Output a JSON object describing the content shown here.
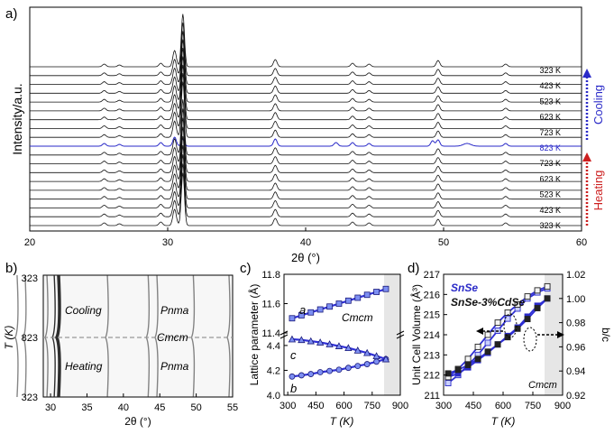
{
  "panels": {
    "a": "a)",
    "b": "b)",
    "c": "c)",
    "d": "d)"
  },
  "colors": {
    "black": "#111111",
    "blue": "#2a2ac8",
    "red": "#cc1f1f",
    "shade": "#e6e6e6",
    "lineBlue": "#2f2fd6",
    "squareFill": "#7d8ff2"
  },
  "chart_data": [
    {
      "id": "a",
      "type": "line",
      "title": "",
      "xlabel": "2θ (°)",
      "ylabel": "Intensity/a.u.",
      "xlim": [
        20,
        60
      ],
      "xticks": [
        20,
        30,
        40,
        50,
        60
      ],
      "peaks": [
        25.4,
        26.5,
        29.5,
        30.5,
        31.1,
        37.8,
        43.4,
        44.6,
        49.6,
        54.5
      ],
      "temperature_labels_top_to_bottom": [
        "323 K",
        "423 K",
        "523 K",
        "623 K",
        "723 K",
        "823 K",
        "723 K",
        "623 K",
        "523 K",
        "423 K",
        "323 K"
      ],
      "highlight_label": "823 K",
      "annotations": {
        "cooling": "Cooling",
        "heating": "Heating"
      }
    },
    {
      "id": "b",
      "type": "heatmap",
      "xlabel": "2θ (°)",
      "ylabel": "T (K)",
      "xlim": [
        29,
        55
      ],
      "xticks": [
        30,
        35,
        40,
        45,
        50,
        55
      ],
      "yticks": [
        "323",
        "823",
        "323"
      ],
      "annotations": {
        "cooling": "Cooling",
        "heating": "Heating",
        "pnma_top": "Pnma",
        "cmcm": "Cmcm",
        "pnma_bottom": "Pnma"
      }
    },
    {
      "id": "c",
      "type": "line",
      "xlabel": "T (K)",
      "ylabel": "Lattice parameter (Å)",
      "xlim": [
        280,
        900
      ],
      "xticks": [
        300,
        450,
        600,
        750,
        900
      ],
      "upper_ylim": [
        11.4,
        11.8
      ],
      "upper_yticks": [
        11.4,
        11.6,
        11.8
      ],
      "lower_ylim": [
        4.0,
        4.45
      ],
      "lower_yticks": [
        4.0,
        4.2,
        4.4
      ],
      "phase_label": "Cmcm",
      "shaded_from": 790,
      "series": [
        {
          "name": "a",
          "axis": "upper",
          "marker": "square",
          "x": [
            323,
            373,
            423,
            473,
            523,
            573,
            623,
            673,
            723,
            773,
            823
          ],
          "values": [
            11.5,
            11.52,
            11.54,
            11.56,
            11.58,
            11.6,
            11.62,
            11.64,
            11.66,
            11.68,
            11.7
          ]
        },
        {
          "name": "b",
          "axis": "lower",
          "marker": "circle",
          "x": [
            323,
            373,
            423,
            473,
            523,
            573,
            623,
            673,
            723,
            773,
            823
          ],
          "values": [
            4.15,
            4.16,
            4.17,
            4.185,
            4.195,
            4.205,
            4.22,
            4.235,
            4.25,
            4.27,
            4.29
          ]
        },
        {
          "name": "c",
          "axis": "lower",
          "marker": "triangle",
          "x": [
            323,
            373,
            423,
            473,
            523,
            573,
            623,
            673,
            723,
            773,
            823
          ],
          "values": [
            4.45,
            4.445,
            4.435,
            4.425,
            4.41,
            4.395,
            4.38,
            4.36,
            4.34,
            4.315,
            4.29
          ]
        }
      ]
    },
    {
      "id": "d",
      "type": "line",
      "xlabel": "T (K)",
      "ylabel_left": "Unit Cell Volume (Å³)",
      "ylabel_right": "b/c",
      "xlim": [
        300,
        900
      ],
      "xticks": [
        300,
        450,
        600,
        750,
        900
      ],
      "ylim_left": [
        211,
        217
      ],
      "yticks_left": [
        211,
        212,
        213,
        214,
        215,
        216,
        217
      ],
      "ylim_right": [
        0.92,
        1.02
      ],
      "yticks_right": [
        "0.92",
        "0.94",
        "0.96",
        "0.98",
        "1.00",
        "1.02"
      ],
      "phase_label": "Cmcm",
      "shaded_from": 790,
      "legend": {
        "snse": "SnSe",
        "cdse": "SnSe-3%CdSe"
      },
      "series": [
        {
          "name": "SnSe volume",
          "axis": "left",
          "marker": "open-square",
          "x": [
            323,
            373,
            423,
            473,
            523,
            573,
            623,
            673,
            723,
            773,
            823
          ],
          "values": [
            211.6,
            212.0,
            212.5,
            213.0,
            213.6,
            214.2,
            214.8,
            215.3,
            215.8,
            216.1,
            216.3
          ]
        },
        {
          "name": "SnSe b/c",
          "axis": "right",
          "marker": "filled-square",
          "x": [
            323,
            373,
            423,
            473,
            523,
            573,
            623,
            673,
            723,
            773,
            823
          ],
          "values": [
            0.935,
            0.938,
            0.943,
            0.949,
            0.955,
            0.962,
            0.969,
            0.976,
            0.985,
            0.994,
            1.0
          ]
        },
        {
          "name": "SnSe-3%CdSe volume",
          "axis": "left",
          "marker": "open-square",
          "x": [
            323,
            373,
            423,
            473,
            523,
            573,
            623,
            673,
            723,
            773,
            823
          ],
          "values": [
            211.9,
            212.3,
            212.8,
            213.4,
            214.0,
            214.6,
            215.1,
            215.5,
            215.9,
            216.2,
            216.4
          ]
        },
        {
          "name": "SnSe-3%CdSe b/c",
          "axis": "right",
          "marker": "filled-square",
          "x": [
            323,
            373,
            423,
            473,
            523,
            573,
            623,
            673,
            723,
            773,
            823
          ],
          "values": [
            0.938,
            0.941,
            0.945,
            0.95,
            0.956,
            0.962,
            0.968,
            0.975,
            0.983,
            0.992,
            1.0
          ]
        }
      ]
    }
  ]
}
